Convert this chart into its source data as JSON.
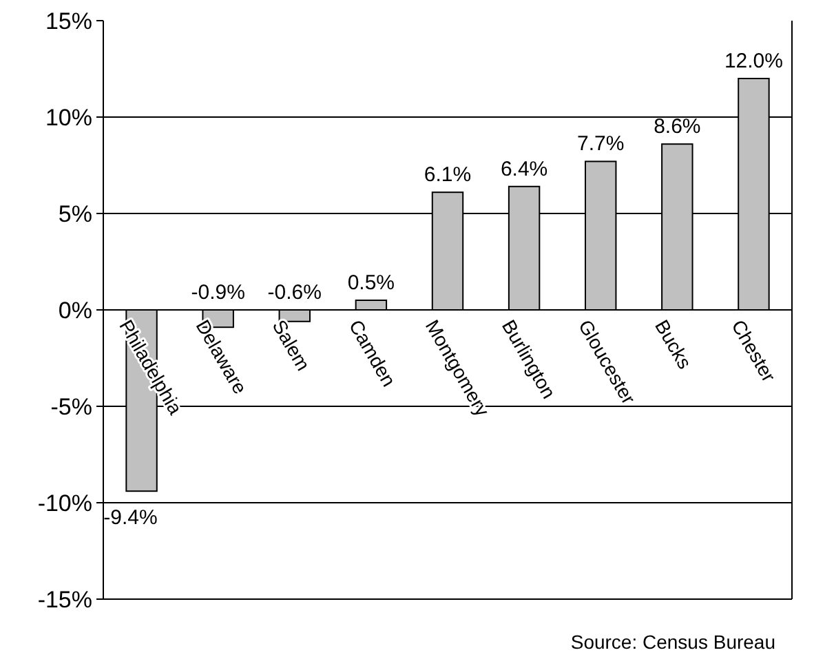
{
  "chart_data": {
    "type": "bar",
    "categories": [
      "Philadelphia",
      "Delaware",
      "Salem",
      "Camden",
      "Montgomery",
      "Burlington",
      "Gloucester",
      "Bucks",
      "Chester"
    ],
    "values": [
      -9.4,
      -0.9,
      -0.6,
      0.5,
      6.1,
      6.4,
      7.7,
      8.6,
      12.0
    ],
    "value_labels": [
      "-9.4%",
      "-0.9%",
      "-0.6%",
      "0.5%",
      "6.1%",
      "6.4%",
      "7.7%",
      "8.6%",
      "12.0%"
    ],
    "color": "#c0c0c0",
    "ylim": [
      -15,
      15
    ],
    "yticks": [
      {
        "value": -15,
        "label": "-15%"
      },
      {
        "value": -10,
        "label": "-10%"
      },
      {
        "value": -5,
        "label": "-5%"
      },
      {
        "value": 0,
        "label": "0%"
      },
      {
        "value": 5,
        "label": "5%"
      },
      {
        "value": 10,
        "label": "10%"
      },
      {
        "value": 15,
        "label": "15%"
      }
    ],
    "grid": "y",
    "annotations": [
      "Source: Census Bureau"
    ]
  }
}
